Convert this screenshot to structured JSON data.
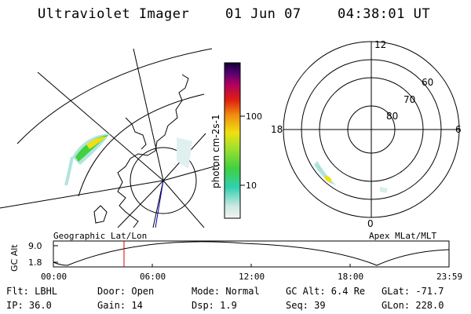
{
  "header": {
    "title": "Ultraviolet Imager",
    "date": "01 Jun 07",
    "time": "04:38:01 UT"
  },
  "colorbar": {
    "label": "photon cm-2s-1",
    "ticks": [
      "100",
      "10"
    ]
  },
  "panels": {
    "left_caption": "Geographic Lat/Lon",
    "right_caption": "Apex MLat/MLT",
    "polar_lat_labels": [
      "60",
      "70",
      "80"
    ],
    "polar_mlt_labels": [
      "12",
      "18",
      "6",
      "0"
    ]
  },
  "altitude_plot": {
    "ylabel": "GC Alt",
    "yticks": [
      "9.0",
      "1.8"
    ],
    "xticks": [
      "00:00",
      "06:00",
      "12:00",
      "18:00",
      "23:59"
    ],
    "marker_color": "#e00000"
  },
  "info": {
    "flt": "Flt: LBHL",
    "ip": "IP: 36.0",
    "door": "Door: Open",
    "gain": "Gain: 14",
    "mode": "Mode: Normal",
    "dsp": "Dsp:    1.9",
    "gc_alt": "GC Alt: 6.4 Re",
    "seq": "Seq: 39",
    "glat": "GLat: -71.7",
    "glon": "GLon: 228.0"
  },
  "colors": {
    "aurora_hot": "#f0e010",
    "aurora_mid": "#40d040",
    "aurora_low": "#30c0a0",
    "aurora_faint": "#b0e4dc",
    "orbit_line": "#0000c0"
  }
}
